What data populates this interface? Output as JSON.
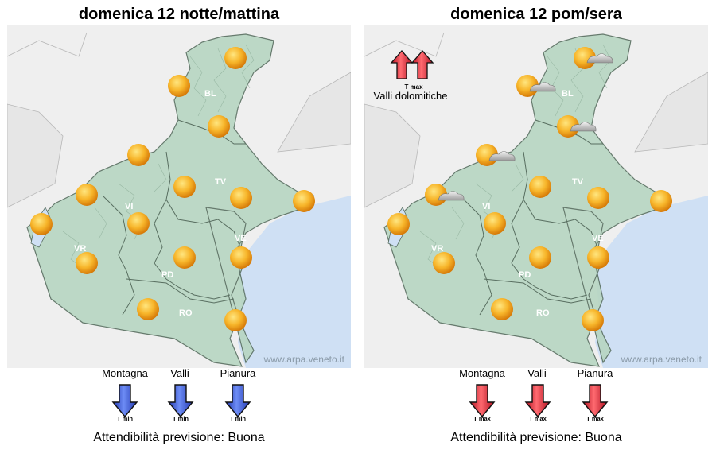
{
  "panels": [
    {
      "title": "domenica 12 notte/mattina",
      "credit": "www.arpa.veneto.it",
      "province_labels": [
        "BL",
        "TV",
        "VI",
        "VE",
        "VR",
        "PD",
        "RO"
      ],
      "zones": [
        "Montagna",
        "Valli",
        "Pianura"
      ],
      "arrow_text": "T min",
      "arrow_color": "#3a5fd8",
      "reliability": "Attendibilità previsione: Buona",
      "weather_icons": [
        "sun",
        "sun",
        "sun",
        "sun",
        "sun",
        "sun",
        "sun",
        "sun",
        "sun",
        "sun",
        "sun",
        "sun",
        "sun",
        "sun"
      ]
    },
    {
      "title": "domenica 12 pom/sera",
      "credit": "www.arpa.veneto.it",
      "province_labels": [
        "BL",
        "TV",
        "VI",
        "VE",
        "VR",
        "PD",
        "RO"
      ],
      "zones": [
        "Montagna",
        "Valli",
        "Pianura"
      ],
      "arrow_text": "T max",
      "arrow_color": "#e0303a",
      "reliability": "Attendibilità previsione: Buona",
      "weather_icons": [
        "sun-cloud",
        "sun-cloud",
        "sun-cloud",
        "sun-cloud",
        "sun-cloud",
        "sun",
        "sun",
        "sun",
        "sun",
        "sun",
        "sun",
        "sun",
        "sun",
        "sun"
      ],
      "annotation": {
        "arrow_text": "T max",
        "label": "Valli dolomitiche",
        "arrow_color": "#e0303a"
      }
    }
  ],
  "colors": {
    "land": "#b7d6c2",
    "sea": "#cfe0f4",
    "border": "#586e60",
    "outside": "#efefef",
    "sun": "#f0a020"
  }
}
